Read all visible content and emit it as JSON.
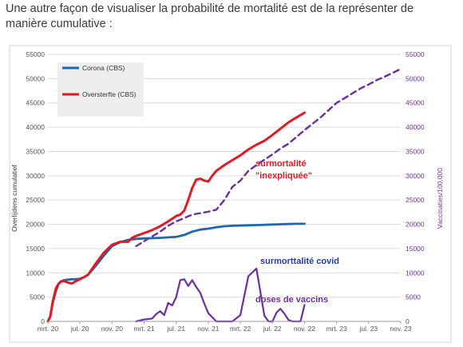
{
  "intro_text": "Une autre façon de visualiser la probabilité de mortalité est de la représenter de manière cumulative :",
  "chart_data": {
    "type": "line",
    "title": "",
    "xlabel": "",
    "ylabel_left": "Overlijdens cumulatief",
    "ylabel_right": "Vaccinaties/100.000",
    "ylim_left": [
      0,
      55000
    ],
    "ylim_right": [
      0,
      55000
    ],
    "y_ticks_left": [
      "0",
      "5000",
      "10000",
      "15000",
      "20000",
      "25000",
      "30000",
      "35000",
      "40000",
      "45000",
      "50000",
      "55000"
    ],
    "y_ticks_right": [
      "0",
      "5000",
      "10000",
      "15000",
      "20000",
      "25000",
      "30000",
      "35000",
      "40000",
      "45000",
      "50000",
      "55000"
    ],
    "x_ticks": [
      "mrt. 20",
      "jul. 20",
      "nov. 20",
      "mrt. 21",
      "jul. 21",
      "nov. 21",
      "mrt. 22",
      "jul. 22",
      "nov. 22",
      "mrt. 23",
      "jul. 23",
      "nov. 23"
    ],
    "grid": "horizontal",
    "legend": "top-left",
    "colors": {
      "corona": "#1f66b0",
      "oversterfte": "#e01b24",
      "vaccins": "#6b2fa0",
      "right_axis": "#7030a0"
    },
    "series": [
      {
        "name": "Corona (CBS)",
        "axis": "left",
        "style": "solid",
        "x": [
          0,
          0.3,
          0.6,
          1,
          1.3,
          1.6,
          2,
          2.5,
          3,
          3.5,
          4,
          4.5,
          5,
          6,
          7,
          8,
          9,
          10,
          11,
          12,
          13,
          14,
          15,
          16,
          17,
          18,
          19,
          20,
          21,
          22,
          23,
          24,
          25,
          26,
          27,
          28,
          29,
          30,
          31,
          32
        ],
        "y": [
          0,
          1000,
          3800,
          6200,
          7600,
          8200,
          8500,
          8600,
          8700,
          8700,
          8800,
          9100,
          9600,
          11500,
          13600,
          15500,
          16300,
          16800,
          17000,
          17100,
          17150,
          17200,
          17300,
          17400,
          17800,
          18500,
          18900,
          19100,
          19400,
          19600,
          19700,
          19750,
          19800,
          19850,
          19900,
          19950,
          20000,
          20050,
          20100,
          20100
        ]
      },
      {
        "name": "Oversterfte (CBS)",
        "axis": "left",
        "style": "solid",
        "x": [
          0,
          0.3,
          0.6,
          1,
          1.3,
          1.6,
          2,
          2.5,
          3,
          3.5,
          4,
          4.5,
          5,
          6,
          7,
          8,
          9,
          10,
          10.5,
          11,
          12,
          13,
          14,
          15,
          16,
          16.5,
          17,
          17.5,
          18,
          18.5,
          19,
          19.5,
          20,
          20.5,
          21,
          22,
          23,
          24,
          25,
          26,
          27,
          28,
          29,
          30,
          31,
          32
        ],
        "y": [
          0,
          1000,
          4000,
          6800,
          7700,
          8200,
          8300,
          8000,
          7800,
          8300,
          8700,
          9100,
          9600,
          12000,
          14200,
          15800,
          16400,
          16400,
          17200,
          17600,
          18200,
          18800,
          19600,
          20600,
          21700,
          22000,
          22800,
          25000,
          27500,
          29200,
          29400,
          29000,
          28800,
          30000,
          31000,
          32200,
          33200,
          34200,
          35400,
          36400,
          37200,
          38400,
          39700,
          41000,
          42000,
          43000
        ]
      },
      {
        "name": "doses de vaccins",
        "axis": "right",
        "style": "solid",
        "x": [
          11,
          12,
          13,
          13.5,
          14,
          14.5,
          15,
          15.5,
          16,
          16.5,
          17,
          17.5,
          18,
          18.5,
          19,
          19.5,
          20,
          21,
          22,
          23,
          24,
          25,
          26,
          27,
          27.5,
          28,
          28.5,
          29,
          29.5,
          30,
          30.5,
          31,
          31.5,
          32
        ],
        "y": [
          0,
          400,
          600,
          1500,
          2100,
          1300,
          3800,
          3300,
          5000,
          8500,
          8700,
          7300,
          8500,
          7100,
          5900,
          3700,
          1700,
          0,
          0,
          0,
          1300,
          9300,
          10900,
          1200,
          0,
          0,
          1800,
          2600,
          1600,
          300,
          0,
          0,
          0,
          3400
        ]
      },
      {
        "name": "",
        "axis": "left",
        "style": "dashed",
        "x": [
          11,
          12,
          13,
          14,
          15,
          16,
          17,
          18,
          19,
          20,
          21,
          22,
          23,
          24,
          25,
          26,
          27,
          28,
          29,
          30,
          31,
          32,
          33,
          34,
          35,
          36,
          37,
          38,
          39,
          40,
          41,
          42,
          43,
          44
        ],
        "y": [
          15500,
          16500,
          17500,
          18500,
          19700,
          20600,
          21300,
          22000,
          22300,
          22600,
          23000,
          25000,
          27700,
          29000,
          31000,
          32200,
          33300,
          34400,
          35600,
          36600,
          38000,
          39400,
          40700,
          42000,
          43500,
          45000,
          46000,
          47000,
          48000,
          48800,
          49700,
          50400,
          51200,
          52000
        ]
      }
    ],
    "annotations": [
      {
        "text_lines": [
          "surmortalité",
          "\"inexpliquée\""
        ],
        "color": "#e01b24"
      },
      {
        "text_lines": [
          "surmorttalité covid"
        ],
        "color": "#2b3a9e"
      },
      {
        "text_lines": [
          "doses de vaccins"
        ],
        "color": "#7030a0"
      }
    ]
  }
}
